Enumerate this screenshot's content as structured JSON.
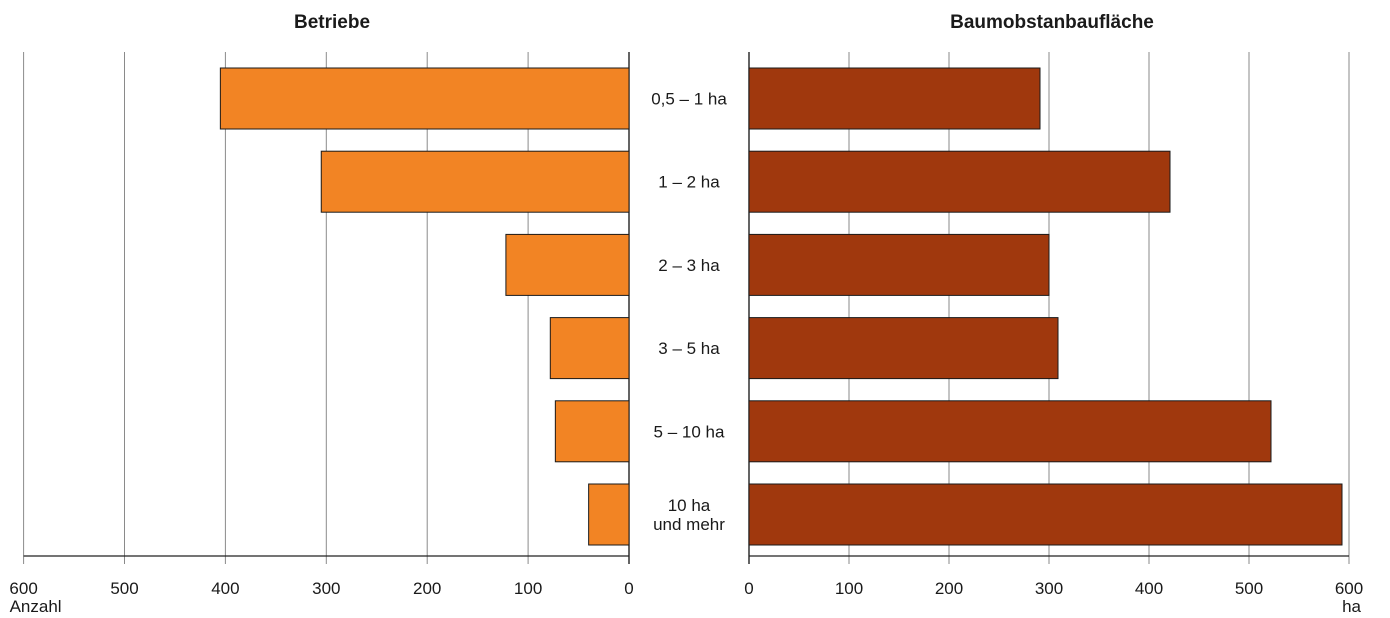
{
  "chart_data": [
    {
      "type": "bar",
      "orientation": "horizontal",
      "direction": "right-to-left",
      "title": "Betriebe",
      "unit": "Anzahl",
      "categories": [
        "0,5 – 1 ha",
        "1 – 2 ha",
        "2 – 3 ha",
        "3 – 5 ha",
        "5 –  10 ha",
        "10 ha und mehr"
      ],
      "values": [
        405,
        305,
        122,
        78,
        73,
        40
      ],
      "xlim": [
        0,
        600
      ],
      "ticks": [
        "600",
        "500",
        "400",
        "300",
        "200",
        "100",
        "0"
      ],
      "color": "#F28424",
      "grid": true
    },
    {
      "type": "bar",
      "orientation": "horizontal",
      "direction": "left-to-right",
      "title": "Baumobstanbaufläche",
      "unit": "ha",
      "categories": [
        "0,5 – 1 ha",
        "1 – 2 ha",
        "2 – 3 ha",
        "3 – 5 ha",
        "5 –  10 ha",
        "10 ha und mehr"
      ],
      "values": [
        291,
        421,
        300,
        309,
        522,
        593
      ],
      "xlim": [
        0,
        600
      ],
      "ticks": [
        "0",
        "100",
        "200",
        "300",
        "400",
        "500",
        "600"
      ],
      "color": "#A0380D",
      "grid": true
    }
  ],
  "category_lines": [
    [
      "0,5 – 1 ha"
    ],
    [
      "1 – 2 ha"
    ],
    [
      "2 – 3 ha"
    ],
    [
      "3 – 5 ha"
    ],
    [
      "5 –  10 ha"
    ],
    [
      "10 ha",
      "und mehr"
    ]
  ]
}
